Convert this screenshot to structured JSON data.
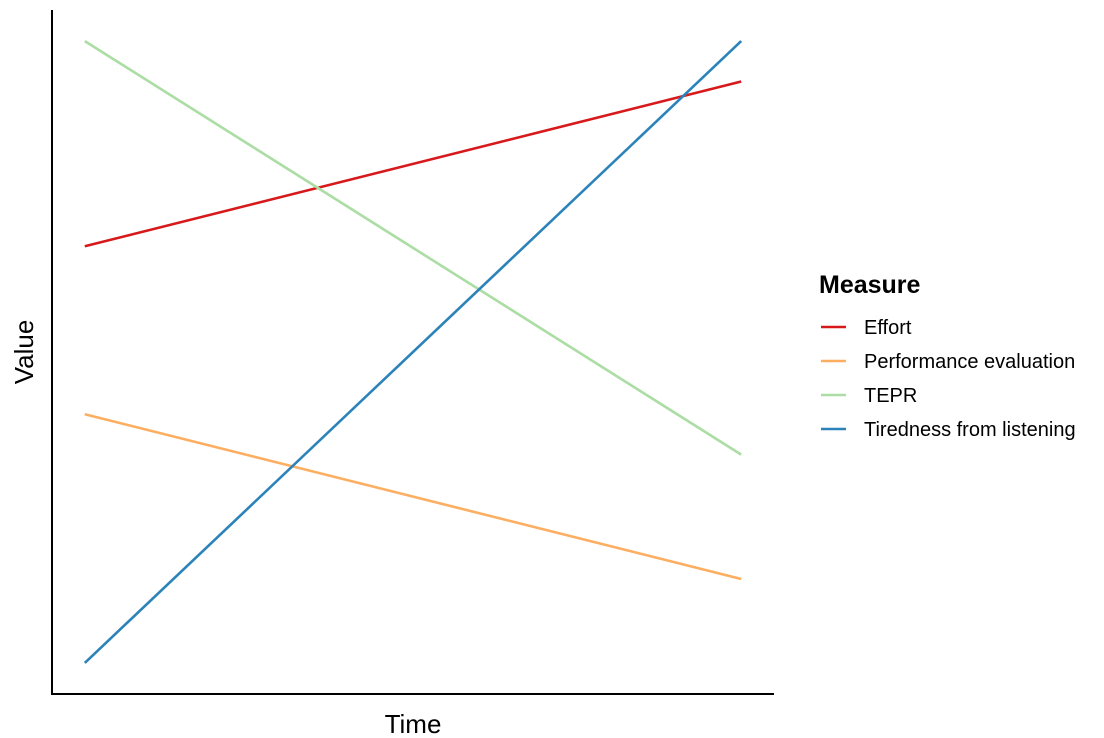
{
  "chart_data": {
    "type": "line",
    "title": "",
    "xlabel": "Time",
    "ylabel": "Value",
    "x": [
      0,
      1
    ],
    "xlim": [
      -0.05,
      1.05
    ],
    "ylim": [
      -0.05,
      1.05
    ],
    "grid": false,
    "legend": {
      "title": "Measure",
      "placement": "right"
    },
    "series": [
      {
        "name": "Effort",
        "color": "#d7191c",
        "values": [
          0.67,
          0.935
        ]
      },
      {
        "name": "Performance evaluation",
        "color": "#fdae61",
        "values": [
          0.4,
          0.135
        ]
      },
      {
        "name": "TEPR",
        "color": "#abdda4",
        "values": [
          1.0,
          0.335
        ]
      },
      {
        "name": "Tiredness from listening",
        "color": "#2b83ba",
        "values": [
          0.0,
          1.0
        ]
      }
    ]
  }
}
